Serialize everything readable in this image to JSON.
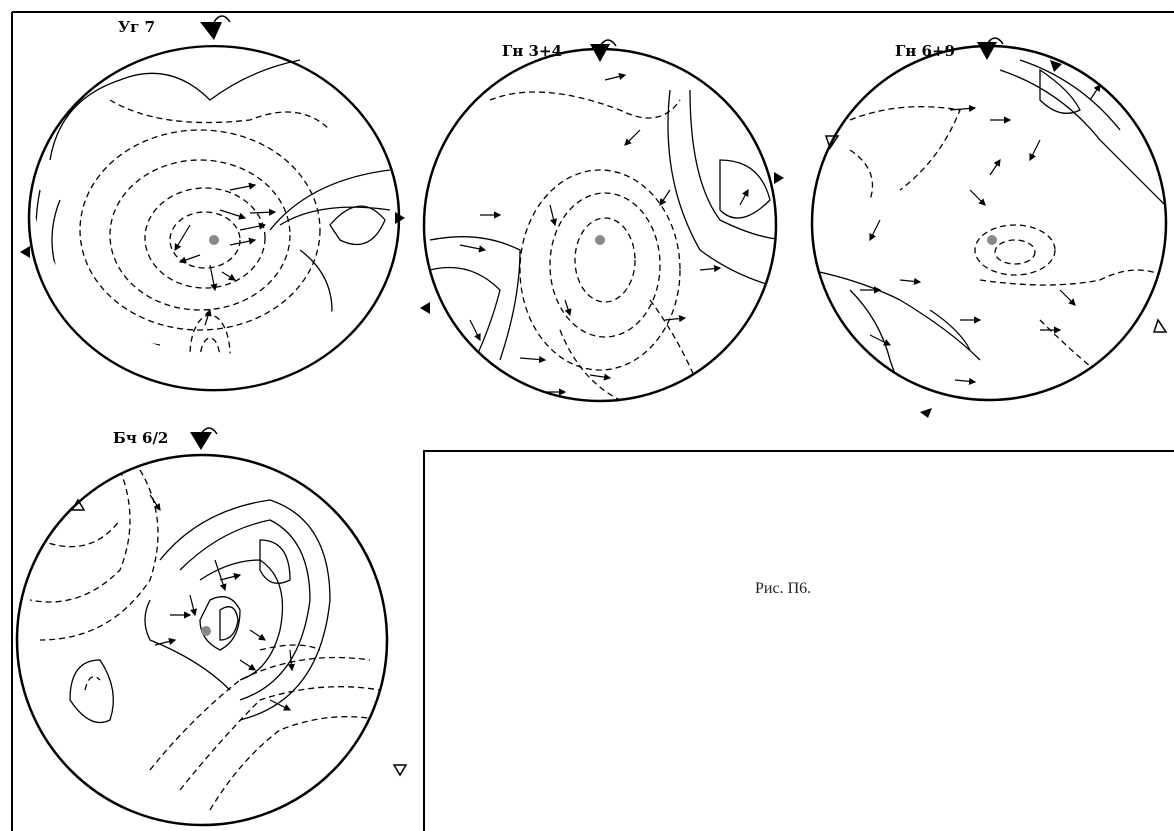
{
  "figure": {
    "caption": "Рис. П6.",
    "panels": [
      {
        "label": "Уг 7"
      },
      {
        "label": "Гн 3+4"
      },
      {
        "label": "Гн 6+9"
      },
      {
        "label": "Бч 6/2"
      }
    ]
  },
  "colors": {
    "line": "#000000",
    "center_dot": "#888888",
    "background": "#ffffff"
  }
}
